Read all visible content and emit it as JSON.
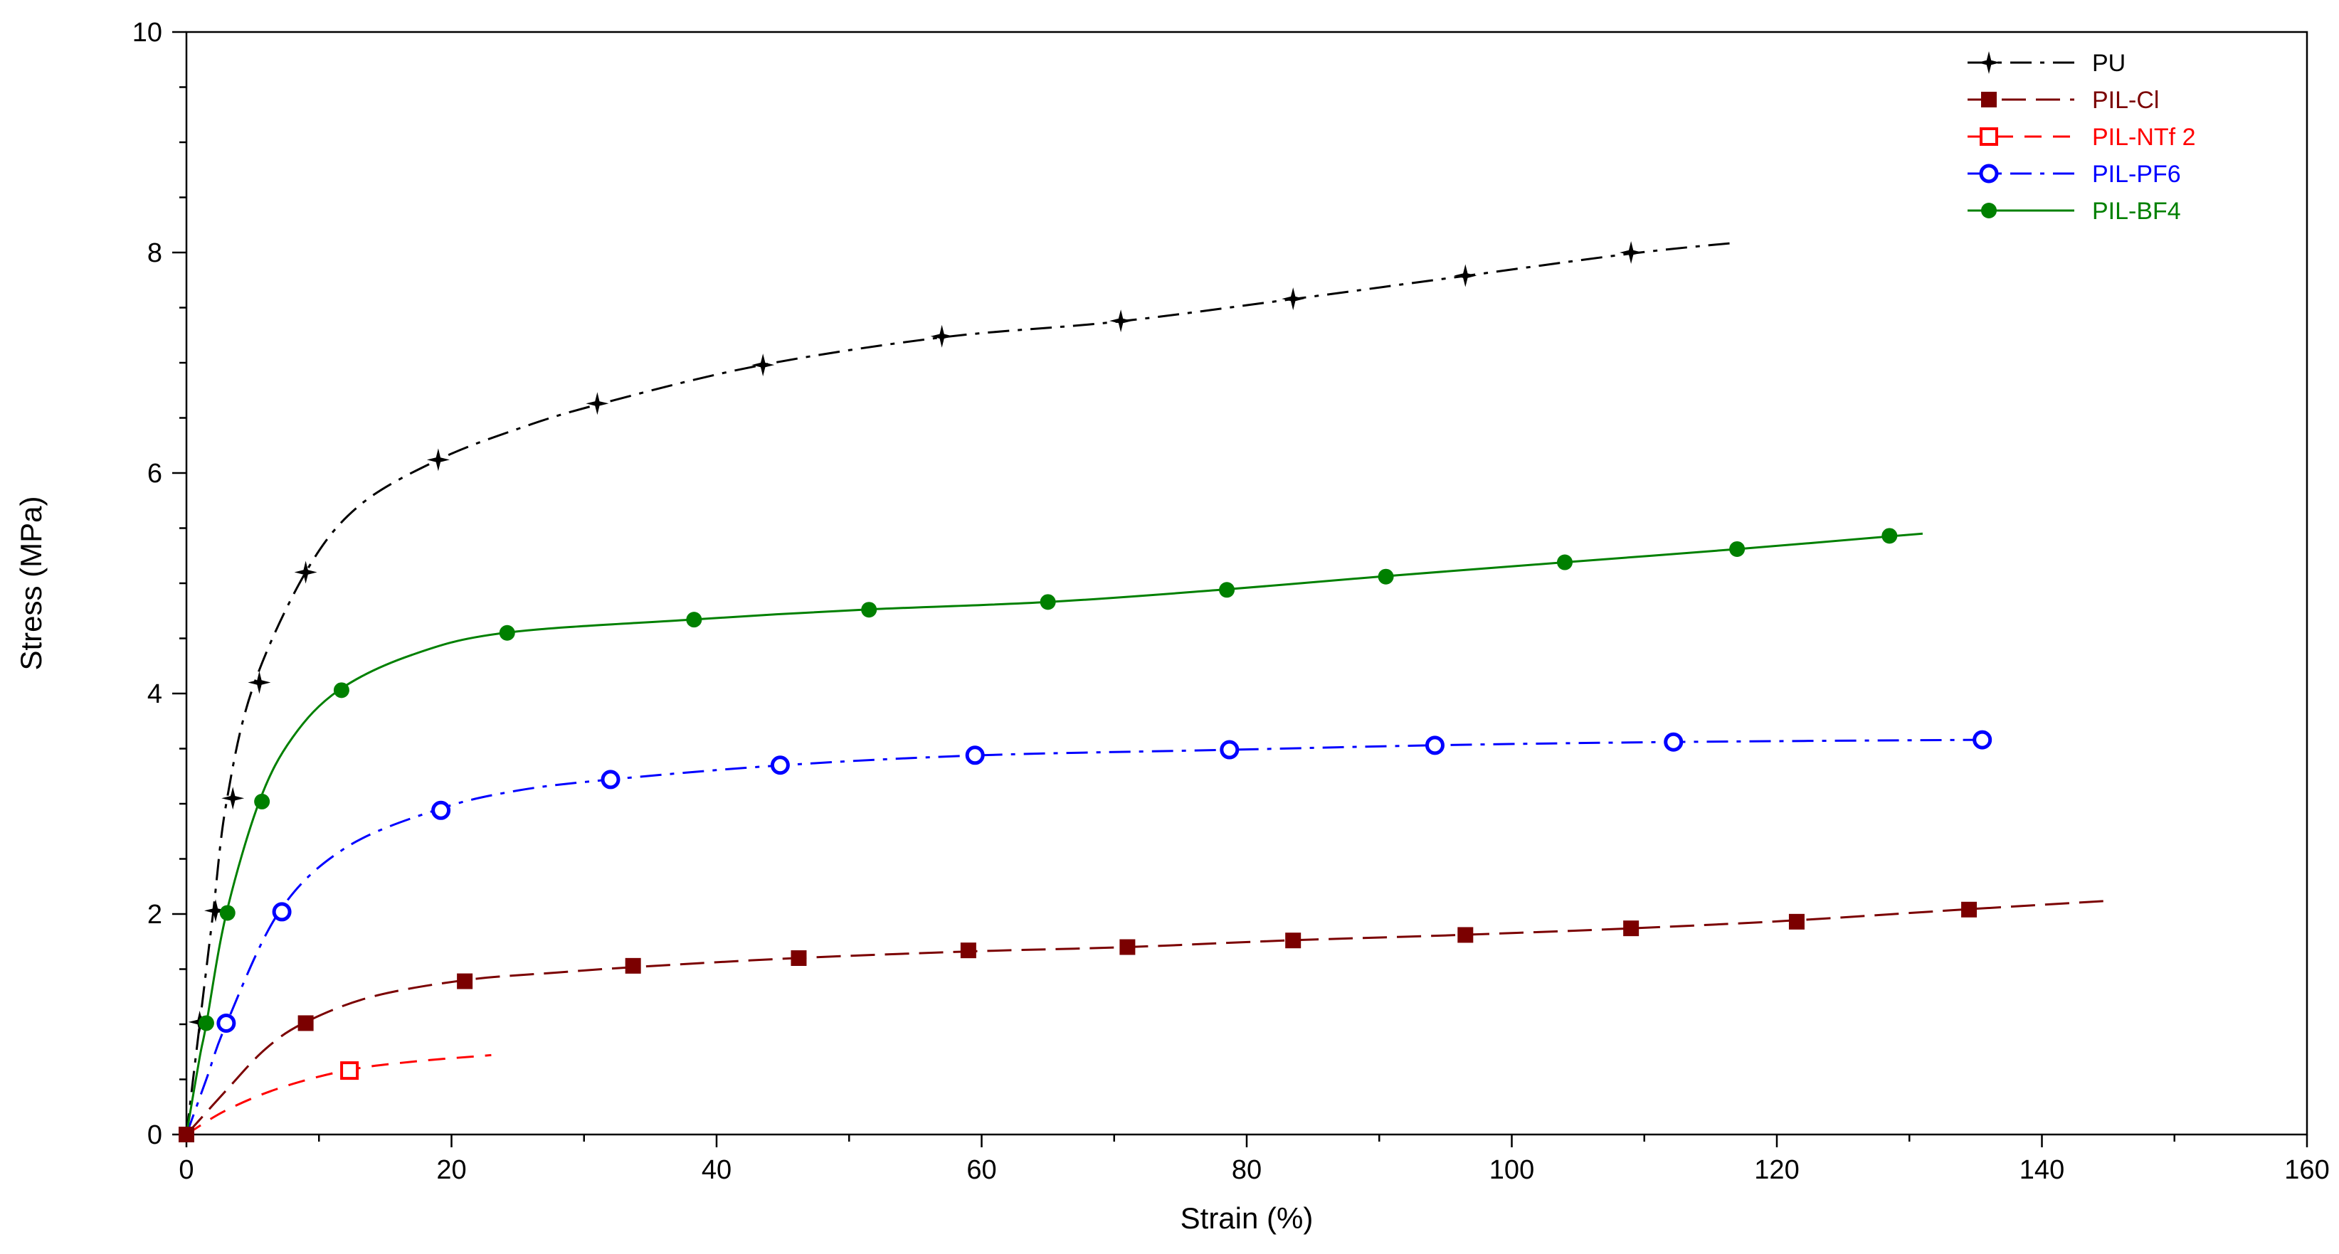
{
  "chart_data": {
    "type": "line",
    "xlabel": "Strain (%)",
    "ylabel": "Stress (MPa)",
    "xlim": [
      0,
      160
    ],
    "ylim": [
      0,
      10
    ],
    "xticks": [
      0,
      20,
      40,
      60,
      80,
      100,
      120,
      140,
      160
    ],
    "yticks": [
      0,
      2,
      4,
      6,
      8,
      10
    ],
    "xtick_labels": [
      "0",
      "20",
      "40",
      "60",
      "80",
      "100",
      "120",
      "140",
      "160"
    ],
    "ytick_labels": [
      "0",
      "2",
      "4",
      "6",
      "8",
      "10"
    ],
    "legend_position": "top-right",
    "series": [
      {
        "name": "PU",
        "color": "#000000",
        "dash": "dashdot",
        "marker": "star",
        "curve": [
          [
            0,
            0
          ],
          [
            0.5,
            0.5
          ],
          [
            1,
            1
          ],
          [
            2,
            2
          ],
          [
            3,
            3
          ],
          [
            5,
            4.05
          ],
          [
            9,
            5.1
          ],
          [
            13,
            5.7
          ],
          [
            19,
            6.12
          ],
          [
            25,
            6.4
          ],
          [
            31,
            6.62
          ],
          [
            43,
            6.97
          ],
          [
            57,
            7.23
          ],
          [
            70,
            7.37
          ],
          [
            83,
            7.57
          ],
          [
            96,
            7.78
          ],
          [
            109,
            7.99
          ],
          [
            117,
            8.09
          ]
        ],
        "points": [
          [
            1,
            1.02
          ],
          [
            2.2,
            2.03
          ],
          [
            3.5,
            3.05
          ],
          [
            5.5,
            4.1
          ],
          [
            9,
            5.1
          ],
          [
            19,
            6.12
          ],
          [
            31,
            6.63
          ],
          [
            43.5,
            6.98
          ],
          [
            57,
            7.24
          ],
          [
            70.5,
            7.38
          ],
          [
            83.5,
            7.58
          ],
          [
            96.5,
            7.79
          ],
          [
            109,
            8.0
          ]
        ]
      },
      {
        "name": "PIL-Cl",
        "color": "#7B0000",
        "dash": "longdash",
        "marker": "square",
        "curve": [
          [
            0,
            0
          ],
          [
            3,
            0.4
          ],
          [
            6,
            0.78
          ],
          [
            9,
            1.02
          ],
          [
            14,
            1.25
          ],
          [
            21,
            1.4
          ],
          [
            28,
            1.47
          ],
          [
            34,
            1.52
          ],
          [
            46,
            1.6
          ],
          [
            59,
            1.66
          ],
          [
            71,
            1.7
          ],
          [
            83,
            1.76
          ],
          [
            96,
            1.81
          ],
          [
            109,
            1.87
          ],
          [
            121,
            1.94
          ],
          [
            134,
            2.04
          ],
          [
            145,
            2.12
          ]
        ],
        "points": [
          [
            0,
            0
          ],
          [
            9,
            1.01
          ],
          [
            21,
            1.39
          ],
          [
            33.7,
            1.53
          ],
          [
            46.2,
            1.6
          ],
          [
            59,
            1.67
          ],
          [
            71,
            1.7
          ],
          [
            83.5,
            1.76
          ],
          [
            96.5,
            1.81
          ],
          [
            109,
            1.87
          ],
          [
            121.5,
            1.93
          ],
          [
            134.5,
            2.04
          ]
        ]
      },
      {
        "name": "PIL-NTf 2",
        "color": "#FF0000",
        "dash": "dash",
        "marker": "open-square",
        "curve": [
          [
            0,
            0
          ],
          [
            3,
            0.22
          ],
          [
            7,
            0.42
          ],
          [
            12,
            0.58
          ],
          [
            17,
            0.66
          ],
          [
            23,
            0.72
          ]
        ],
        "points": [
          [
            12.3,
            0.58
          ]
        ]
      },
      {
        "name": "PIL-PF6",
        "color": "#0000FF",
        "dash": "dashdot",
        "marker": "open-circle",
        "curve": [
          [
            0,
            0
          ],
          [
            1.5,
            0.5
          ],
          [
            3,
            1.0
          ],
          [
            7,
            2.02
          ],
          [
            12,
            2.6
          ],
          [
            19,
            2.95
          ],
          [
            25,
            3.12
          ],
          [
            32,
            3.22
          ],
          [
            45,
            3.35
          ],
          [
            60,
            3.44
          ],
          [
            79,
            3.49
          ],
          [
            94,
            3.53
          ],
          [
            112,
            3.56
          ],
          [
            135.5,
            3.58
          ]
        ],
        "points": [
          [
            3,
            1.01
          ],
          [
            7.2,
            2.02
          ],
          [
            19.2,
            2.94
          ],
          [
            32,
            3.22
          ],
          [
            44.8,
            3.35
          ],
          [
            59.5,
            3.44
          ],
          [
            78.7,
            3.49
          ],
          [
            94.2,
            3.53
          ],
          [
            112.2,
            3.56
          ],
          [
            135.5,
            3.58
          ]
        ]
      },
      {
        "name": "PIL-BF4",
        "color": "#008000",
        "dash": "solid",
        "marker": "filled-circle",
        "curve": [
          [
            0,
            0
          ],
          [
            1,
            0.7
          ],
          [
            1.5,
            1.0
          ],
          [
            3,
            2.0
          ],
          [
            5.5,
            3.02
          ],
          [
            8,
            3.6
          ],
          [
            11.5,
            4.03
          ],
          [
            17,
            4.35
          ],
          [
            24,
            4.55
          ],
          [
            38,
            4.67
          ],
          [
            51,
            4.76
          ],
          [
            65,
            4.83
          ],
          [
            78,
            4.94
          ],
          [
            90,
            5.06
          ],
          [
            104,
            5.19
          ],
          [
            117,
            5.31
          ],
          [
            131,
            5.45
          ]
        ],
        "points": [
          [
            1.5,
            1.01
          ],
          [
            3.1,
            2.01
          ],
          [
            5.7,
            3.02
          ],
          [
            11.7,
            4.03
          ],
          [
            24.2,
            4.55
          ],
          [
            38.3,
            4.67
          ],
          [
            51.5,
            4.76
          ],
          [
            65,
            4.83
          ],
          [
            78.5,
            4.94
          ],
          [
            90.5,
            5.06
          ],
          [
            104,
            5.19
          ],
          [
            117,
            5.31
          ],
          [
            128.5,
            5.43
          ]
        ]
      }
    ]
  }
}
